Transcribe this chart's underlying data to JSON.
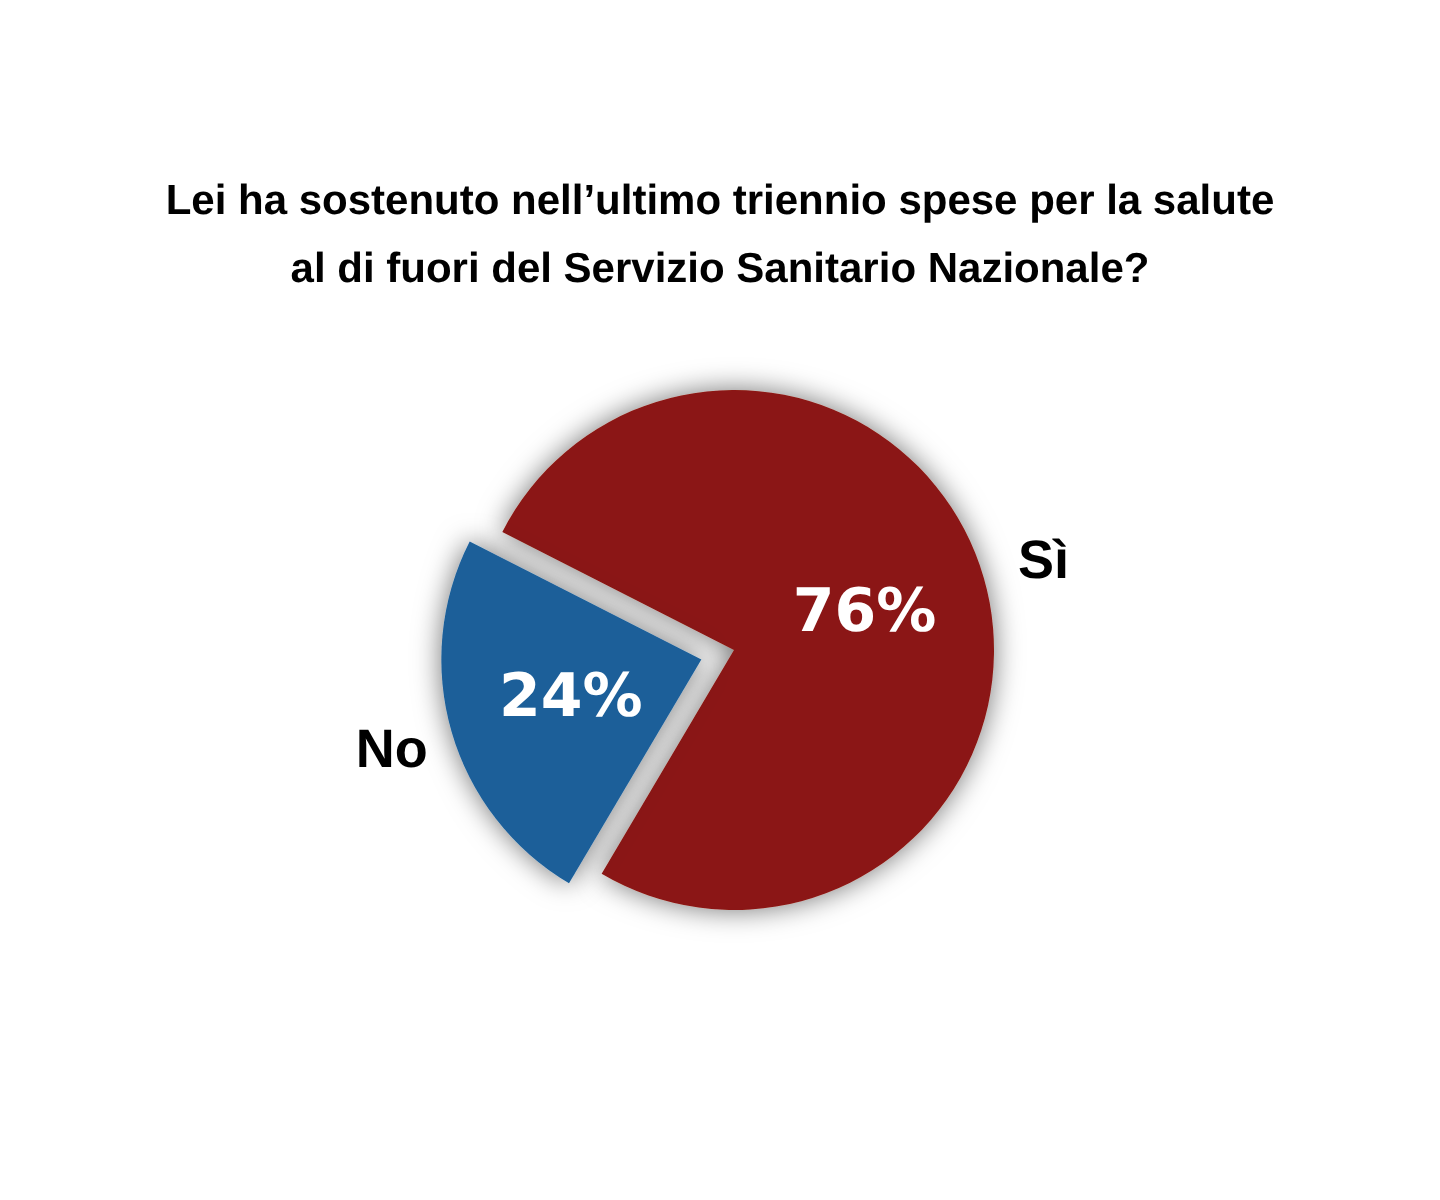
{
  "chart_data": {
    "type": "pie",
    "title": "Lei ha sostenuto nell’ultimo triennio spese per la salute al di fuori del Servizio Sanitario Nazionale?",
    "categories": [
      "Sì",
      "No"
    ],
    "values": [
      76,
      24
    ],
    "colors": [
      "#8b1912",
      "#1a5e99"
    ],
    "value_labels": [
      "76%",
      "24%"
    ]
  }
}
